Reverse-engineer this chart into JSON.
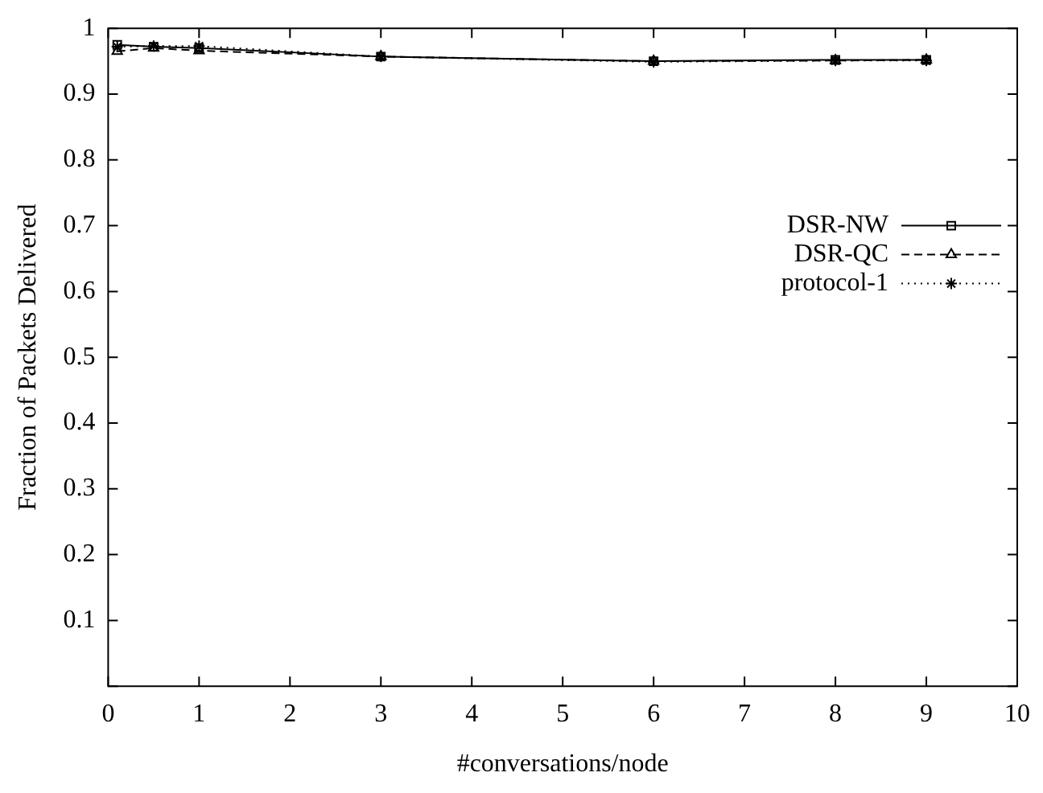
{
  "chart_data": {
    "type": "line",
    "xlabel": "#conversations/node",
    "ylabel": "Fraction of Packets Delivered",
    "x": [
      0.1,
      0.5,
      1,
      3,
      6,
      8,
      9
    ],
    "series": [
      {
        "name": "DSR-NW",
        "color": "#000000",
        "marker": "square",
        "line_style": "solid",
        "values": [
          0.975,
          0.972,
          0.97,
          0.957,
          0.95,
          0.952,
          0.952
        ]
      },
      {
        "name": "DSR-QC",
        "color": "#000000",
        "marker": "triangle",
        "line_style": "dashed",
        "values": [
          0.965,
          0.97,
          0.966,
          0.957,
          0.95,
          0.951,
          0.952
        ]
      },
      {
        "name": "protocol-1",
        "color": "#000000",
        "marker": "cross",
        "line_style": "dotted",
        "values": [
          0.972,
          0.973,
          0.973,
          0.957,
          0.949,
          0.951,
          0.951
        ]
      }
    ],
    "xlim": [
      0,
      10
    ],
    "xticks": [
      0,
      1,
      2,
      3,
      4,
      5,
      6,
      7,
      8,
      9,
      10
    ],
    "ylim": [
      0,
      1
    ],
    "yticks": [
      {
        "value": 0,
        "label": null
      },
      0.1,
      0.2,
      0.3,
      0.4,
      0.5,
      0.6,
      0.7,
      0.8,
      0.9,
      1
    ],
    "grid": false,
    "legend": "right"
  }
}
